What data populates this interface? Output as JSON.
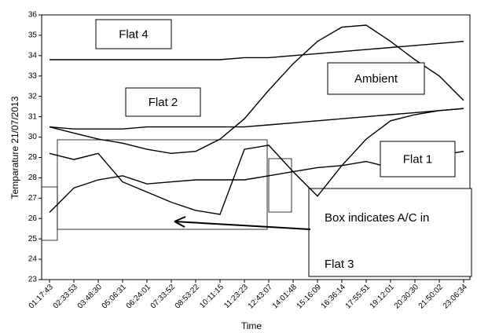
{
  "chart_data": {
    "type": "line",
    "categories": [
      "01:17:43",
      "02:33:53",
      "03:48:30",
      "05:06:31",
      "06:24:01",
      "07:33:52",
      "08:53:22",
      "10:11:15",
      "11:23:23",
      "12:43:07",
      "14:01:48",
      "15:16:09",
      "16:36:14",
      "17:55:51",
      "19:12:01",
      "20:30:30",
      "21:50:02",
      "23:06:34"
    ],
    "x_label": "Time",
    "y_label": "Temparature 21/07/2013",
    "ylim": [
      23,
      36
    ],
    "yticks": [
      23,
      24,
      25,
      26,
      27,
      28,
      29,
      30,
      31,
      32,
      33,
      34,
      35,
      36
    ],
    "annotation": "Box indicates A/C in",
    "series": [
      {
        "name": "Flat 4",
        "color": "#000000",
        "values": [
          33.8,
          33.8,
          33.8,
          33.8,
          33.8,
          33.8,
          33.8,
          33.8,
          33.9,
          33.9,
          34.0,
          34.1,
          34.2,
          34.3,
          34.4,
          34.5,
          34.6,
          34.7
        ]
      },
      {
        "name": "Flat 2",
        "color": "#000000",
        "values": [
          30.5,
          30.4,
          30.4,
          30.4,
          30.5,
          30.5,
          30.5,
          30.5,
          30.5,
          30.6,
          30.7,
          30.8,
          30.9,
          31.0,
          31.1,
          31.2,
          31.3,
          31.4
        ]
      },
      {
        "name": "Ambient",
        "color": "#000000",
        "values": [
          30.5,
          30.2,
          29.9,
          29.7,
          29.4,
          29.2,
          29.3,
          29.9,
          30.9,
          32.3,
          33.6,
          34.7,
          35.4,
          35.5,
          34.7,
          33.8,
          33.0,
          31.8
        ]
      },
      {
        "name": "Flat 1",
        "color": "#000000",
        "values": [
          26.3,
          27.5,
          27.9,
          28.1,
          27.7,
          27.8,
          27.9,
          27.9,
          27.9,
          28.1,
          28.3,
          28.5,
          28.6,
          28.8,
          28.5,
          28.9,
          29.1,
          29.3
        ]
      },
      {
        "name": "Flat 3",
        "color": "#000000",
        "values": [
          29.2,
          28.9,
          29.2,
          27.8,
          27.3,
          26.8,
          26.4,
          26.2,
          29.4,
          29.6,
          28.3,
          27.1,
          28.6,
          29.9,
          30.8,
          31.1,
          31.3,
          31.4
        ]
      }
    ]
  }
}
